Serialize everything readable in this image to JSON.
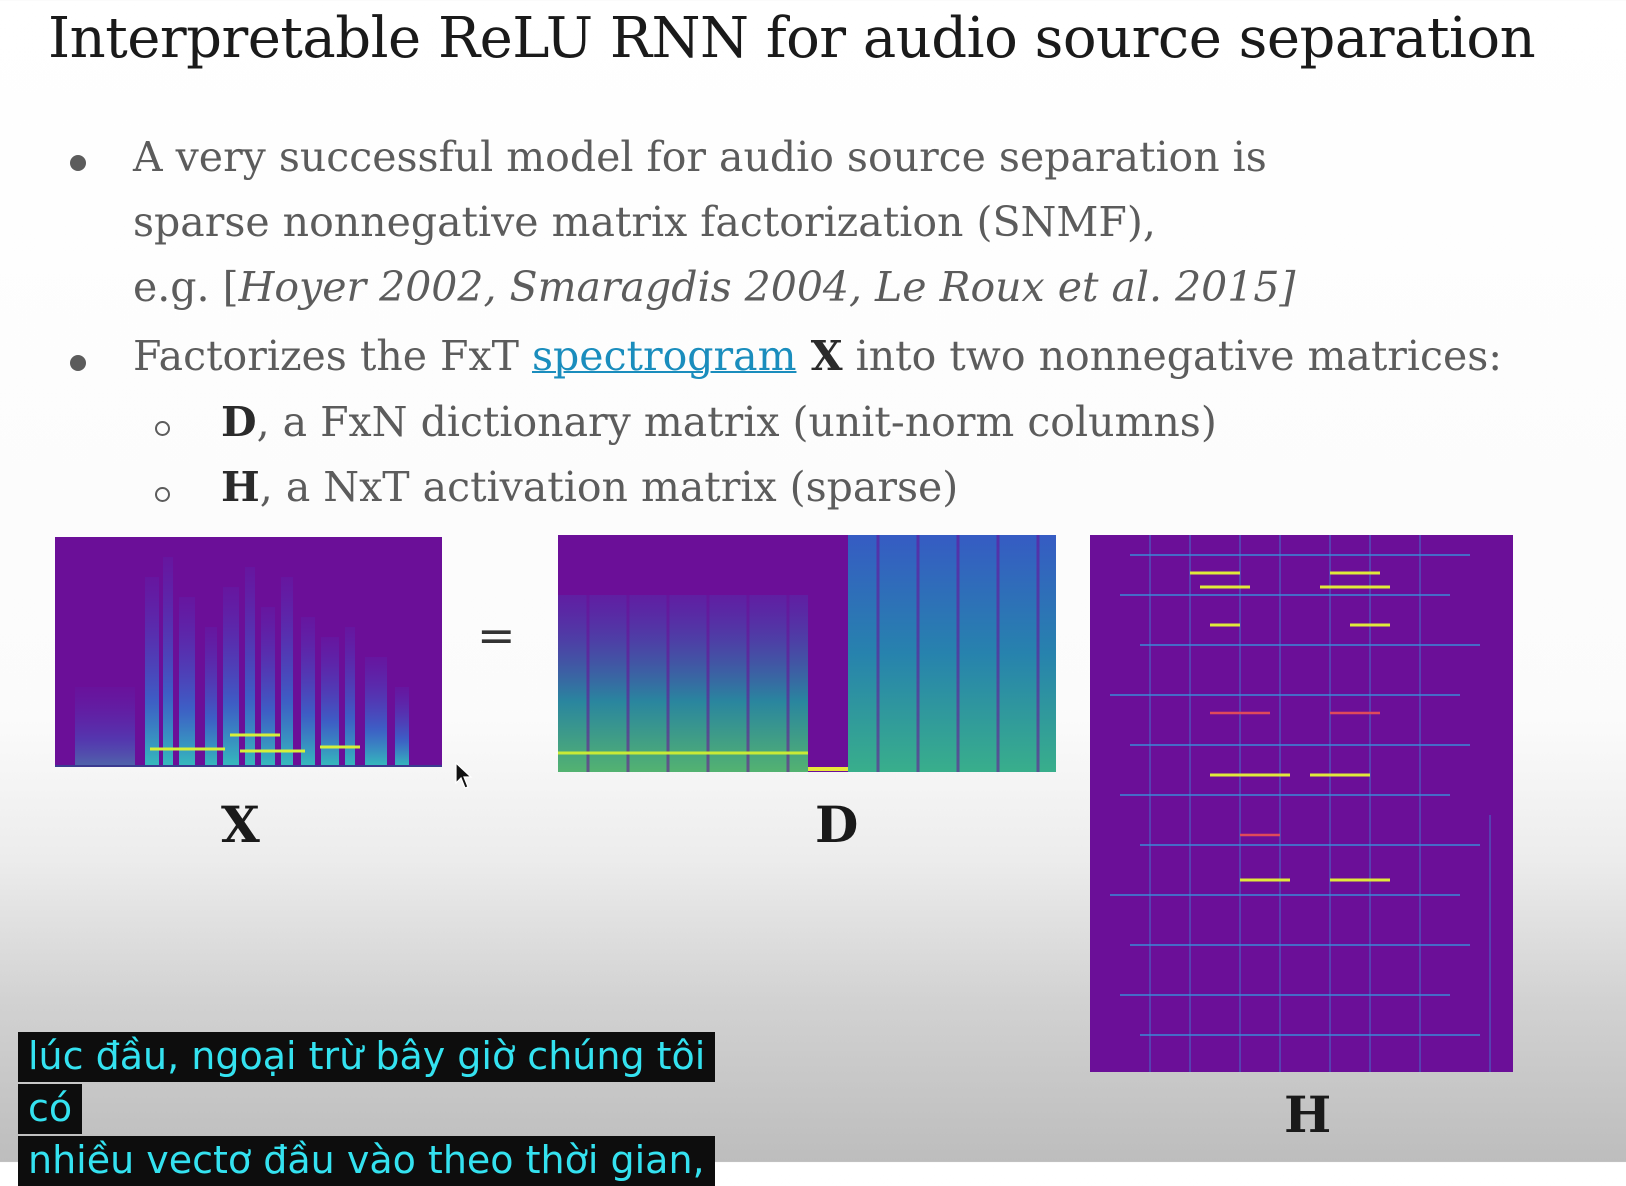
{
  "slide": {
    "title": "Interpretable ReLU RNN for audio source separation",
    "bullet1": {
      "line1": "A very successful model for audio source separation is",
      "line2": "sparse nonnegative matrix factorization (SNMF),",
      "line3_prefix": "e.g. [",
      "line3_citation": "Hoyer 2002, Smaragdis 2004, Le Roux et al. 2015]"
    },
    "bullet2": {
      "prefix": "Factorizes the FxT ",
      "link": "spectrogram",
      "bold_x": " X",
      "suffix": " into two nonnegative matrices:"
    },
    "sub1": {
      "bold": "D",
      "text": ", a FxN dictionary matrix (unit-norm columns)"
    },
    "sub2": {
      "bold": "H",
      "text": ", a NxT activation matrix (sparse)"
    },
    "figure": {
      "label_x": "X",
      "equals": "=",
      "label_d": "D",
      "label_h": "H"
    }
  },
  "subtitle": {
    "line1": "lúc đầu, ngoại trừ bây giờ chúng tôi có",
    "line2": "nhiều vectơ đầu vào theo thời gian,"
  },
  "colors": {
    "spectrogram_bg": "#6b0f98",
    "link": "#1a8dbd",
    "caption_text": "#34e2f0",
    "caption_bg": "#0d0d0d"
  },
  "icons": {
    "cursor": "mouse-pointer-icon"
  }
}
